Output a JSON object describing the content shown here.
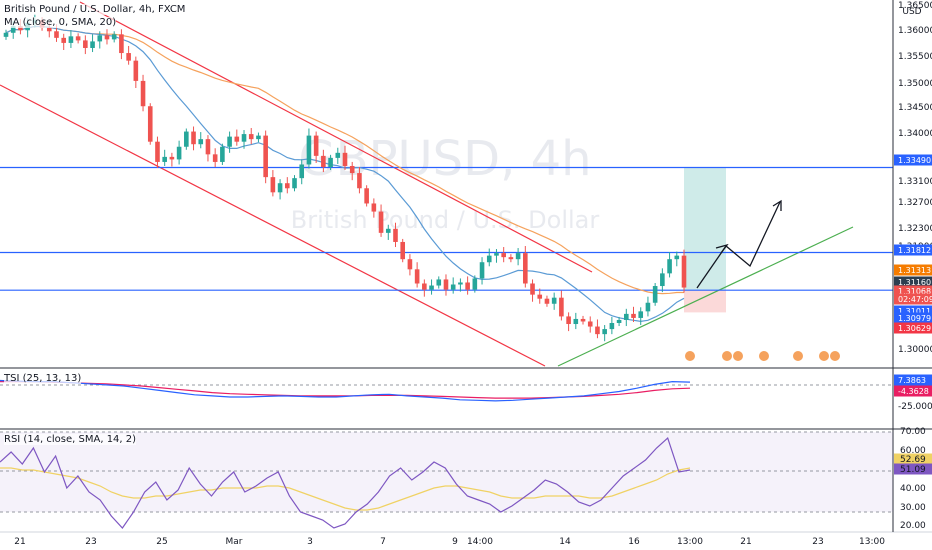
{
  "header": {
    "title": "British Pound / U.S. Dollar, 4h, FXCM",
    "ma_label": "MA (close, 0, SMA, 20)"
  },
  "watermark": {
    "big": "GBPUSD, 4h",
    "sub": "British Pound / U.S. Dollar"
  },
  "colors": {
    "up": "#26a69a",
    "down": "#ef5350",
    "hline": "#2962ff",
    "channel": "#f23645",
    "support": "#4caf50",
    "ema_blue": "#5b9bd5",
    "ema_orange": "#f5a25d",
    "tsi": "#2962ff",
    "tsi_signal": "#e91e63",
    "rsi": "#7e57c2",
    "rsi_ma": "#f0d264"
  },
  "axis": {
    "currency": "USD",
    "price_ticks": [
      "1.36500",
      "1.36000",
      "1.35500",
      "1.35000",
      "1.34500",
      "1.34000",
      "1.33100",
      "1.32700",
      "1.32300",
      "1.31900",
      "1.30000"
    ],
    "tsi_ticks": [
      "-25.0000"
    ],
    "rsi_ticks": [
      "70.00",
      "60.00",
      "40.00",
      "30.00",
      "20.00"
    ],
    "x_labels": [
      "21",
      "23",
      "25",
      "Mar",
      "3",
      "7",
      "9",
      "14:00",
      "14",
      "16",
      "13:00",
      "21",
      "23",
      "13:00"
    ]
  },
  "price_labels": [
    {
      "text": "1.33490",
      "bg": "#2962ff"
    },
    {
      "text": "1.31812",
      "bg": "#2962ff"
    },
    {
      "text": "1.31313",
      "bg": "#f57c00"
    },
    {
      "text": "1.31160",
      "bg": "#2c3e50"
    },
    {
      "text": "1.31068",
      "bg": "#ef5350"
    },
    {
      "text": "02:47:09",
      "bg": "#ef5350"
    },
    {
      "text": "1.31011",
      "bg": "#2962ff"
    },
    {
      "text": "1.30979",
      "bg": "#2962ff"
    },
    {
      "text": "1.30629",
      "bg": "#f23645"
    }
  ],
  "tsi": {
    "label": "TSI (25, 13, 13)",
    "value1": "7.3863",
    "value2": "-4.3628",
    "value1_bg": "#2962ff",
    "value2_bg": "#e91e63"
  },
  "rsi": {
    "label": "RSI (14, close, SMA, 14, 2)",
    "value1": "52.69",
    "value2": "51.09",
    "value1_bg": "#f0d264",
    "value2_bg": "#7e57c2"
  },
  "chart_data": {
    "type": "candlestick",
    "title": "British Pound / U.S. Dollar, 4h, FXCM",
    "xlabel": "",
    "ylabel": "",
    "x_tick_labels": [
      "21",
      "23",
      "25",
      "Mar",
      "3",
      "7",
      "9",
      "14:00",
      "14",
      "16",
      "13:00",
      "21",
      "23",
      "13:00"
    ],
    "ylim": [
      1.2965,
      1.366
    ],
    "grid": false,
    "closes": [
      1.3615,
      1.3628,
      1.362,
      1.3635,
      1.364,
      1.3625,
      1.3618,
      1.3605,
      1.3595,
      1.3608,
      1.36,
      1.3585,
      1.3598,
      1.361,
      1.3602,
      1.3612,
      1.3575,
      1.356,
      1.352,
      1.347,
      1.34,
      1.336,
      1.337,
      1.3365,
      1.339,
      1.342,
      1.3395,
      1.3405,
      1.3375,
      1.336,
      1.339,
      1.341,
      1.34,
      1.3415,
      1.3405,
      1.3412,
      1.333,
      1.33,
      1.3318,
      1.3308,
      1.3328,
      1.3355,
      1.3412,
      1.3372,
      1.335,
      1.3368,
      1.3378,
      1.3352,
      1.3338,
      1.3308,
      1.3278,
      1.3262,
      1.322,
      1.3228,
      1.3202,
      1.3168,
      1.3148,
      1.312,
      1.3108,
      1.3116,
      1.3128,
      1.3108,
      1.3118,
      1.3122,
      1.3108,
      1.313,
      1.3162,
      1.3175,
      1.318,
      1.3172,
      1.3168,
      1.318,
      1.312,
      1.3098,
      1.309,
      1.308,
      1.3092,
      1.3055,
      1.304,
      1.305,
      1.3045,
      1.3035,
      1.302,
      1.303,
      1.3042,
      1.3048,
      1.306,
      1.3052,
      1.3065,
      1.3082,
      1.3115,
      1.314,
      1.3168,
      1.3175,
      1.3112
    ],
    "horizontal_levels": [
      1.3349,
      1.31812,
      1.31068
    ],
    "trade_box": {
      "entry": 1.31068,
      "target": 1.3349,
      "stop": 1.30629
    },
    "tsi_series": [
      {
        "name": "TSI",
        "values": [
          10,
          9,
          8,
          8,
          6,
          4,
          2,
          0,
          -4,
          -8,
          -12,
          -16,
          -18,
          -20,
          -20,
          -19,
          -18,
          -19,
          -20,
          -20,
          -18,
          -16,
          -15,
          -18,
          -20,
          -22,
          -25,
          -26,
          -27,
          -26,
          -24,
          -22,
          -20,
          -18,
          -14,
          -10,
          -4,
          3,
          8,
          7
        ]
      },
      {
        "name": "Signal",
        "values": [
          8,
          8,
          8,
          7,
          6,
          5,
          4,
          2,
          0,
          -3,
          -6,
          -9,
          -12,
          -14,
          -15,
          -16,
          -17,
          -18,
          -18,
          -18,
          -18,
          -17,
          -17,
          -17,
          -18,
          -19,
          -20,
          -21,
          -22,
          -22,
          -22,
          -21,
          -20,
          -19,
          -17,
          -15,
          -12,
          -8,
          -5,
          -4
        ]
      }
    ],
    "rsi_series": [
      {
        "name": "RSI",
        "values": [
          55,
          60,
          54,
          62,
          50,
          58,
          42,
          48,
          40,
          36,
          28,
          22,
          30,
          40,
          45,
          36,
          41,
          52,
          44,
          38,
          45,
          50,
          40,
          43,
          47,
          50,
          38,
          30,
          28,
          26,
          22,
          24,
          30,
          34,
          40,
          48,
          52,
          46,
          50,
          55,
          52,
          44,
          38,
          36,
          34,
          30,
          33,
          37,
          41,
          46,
          44,
          40,
          35,
          33,
          36,
          42,
          48,
          52,
          56,
          62,
          67,
          50,
          51
        ]
      },
      {
        "name": "RSI MA",
        "values": [
          52,
          52,
          51,
          51,
          50,
          49,
          48,
          47,
          45,
          43,
          40,
          38,
          37,
          37,
          38,
          38,
          39,
          40,
          41,
          41,
          42,
          42,
          42,
          42,
          43,
          43,
          42,
          40,
          38,
          36,
          34,
          32,
          31,
          31,
          32,
          34,
          36,
          38,
          40,
          42,
          43,
          43,
          42,
          41,
          40,
          38,
          37,
          37,
          37,
          38,
          38,
          38,
          38,
          37,
          37,
          38,
          40,
          42,
          44,
          46,
          49,
          51,
          52
        ]
      }
    ]
  }
}
